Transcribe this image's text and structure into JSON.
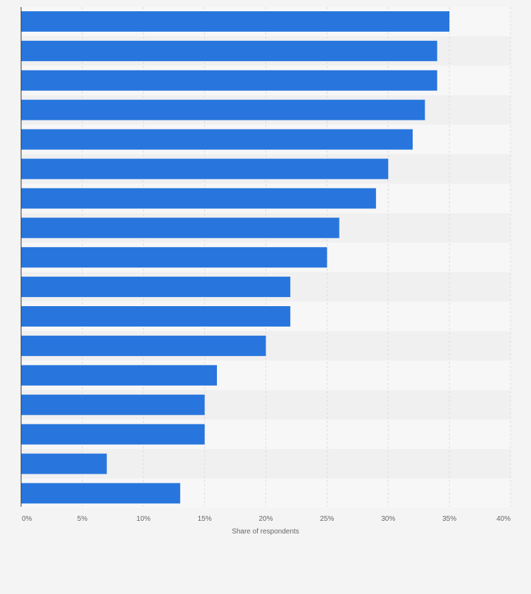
{
  "chart_data": {
    "type": "bar",
    "orientation": "horizontal",
    "title": "",
    "xlabel": "Share of respondents",
    "ylabel": "",
    "categories": [
      "",
      "",
      "",
      "",
      "",
      "",
      "",
      "",
      "",
      "",
      "",
      "",
      "",
      "",
      "",
      "",
      ""
    ],
    "values": [
      35,
      34,
      34,
      33,
      32,
      30,
      29,
      26,
      25,
      22,
      22,
      20,
      16,
      15,
      15,
      7,
      13
    ],
    "xlim": [
      0,
      40
    ],
    "x_ticks": [
      "0%",
      "5%",
      "10%",
      "15%",
      "20%",
      "25%",
      "30%",
      "35%",
      "40%"
    ],
    "grid": true,
    "legend": "none",
    "colors": {
      "bar": "#2876dd",
      "band_light": "#f7f7f8",
      "band_dark": "#f0f0f1",
      "grid": "#dcdcdc",
      "axis": "#333333",
      "text": "#666666"
    }
  }
}
